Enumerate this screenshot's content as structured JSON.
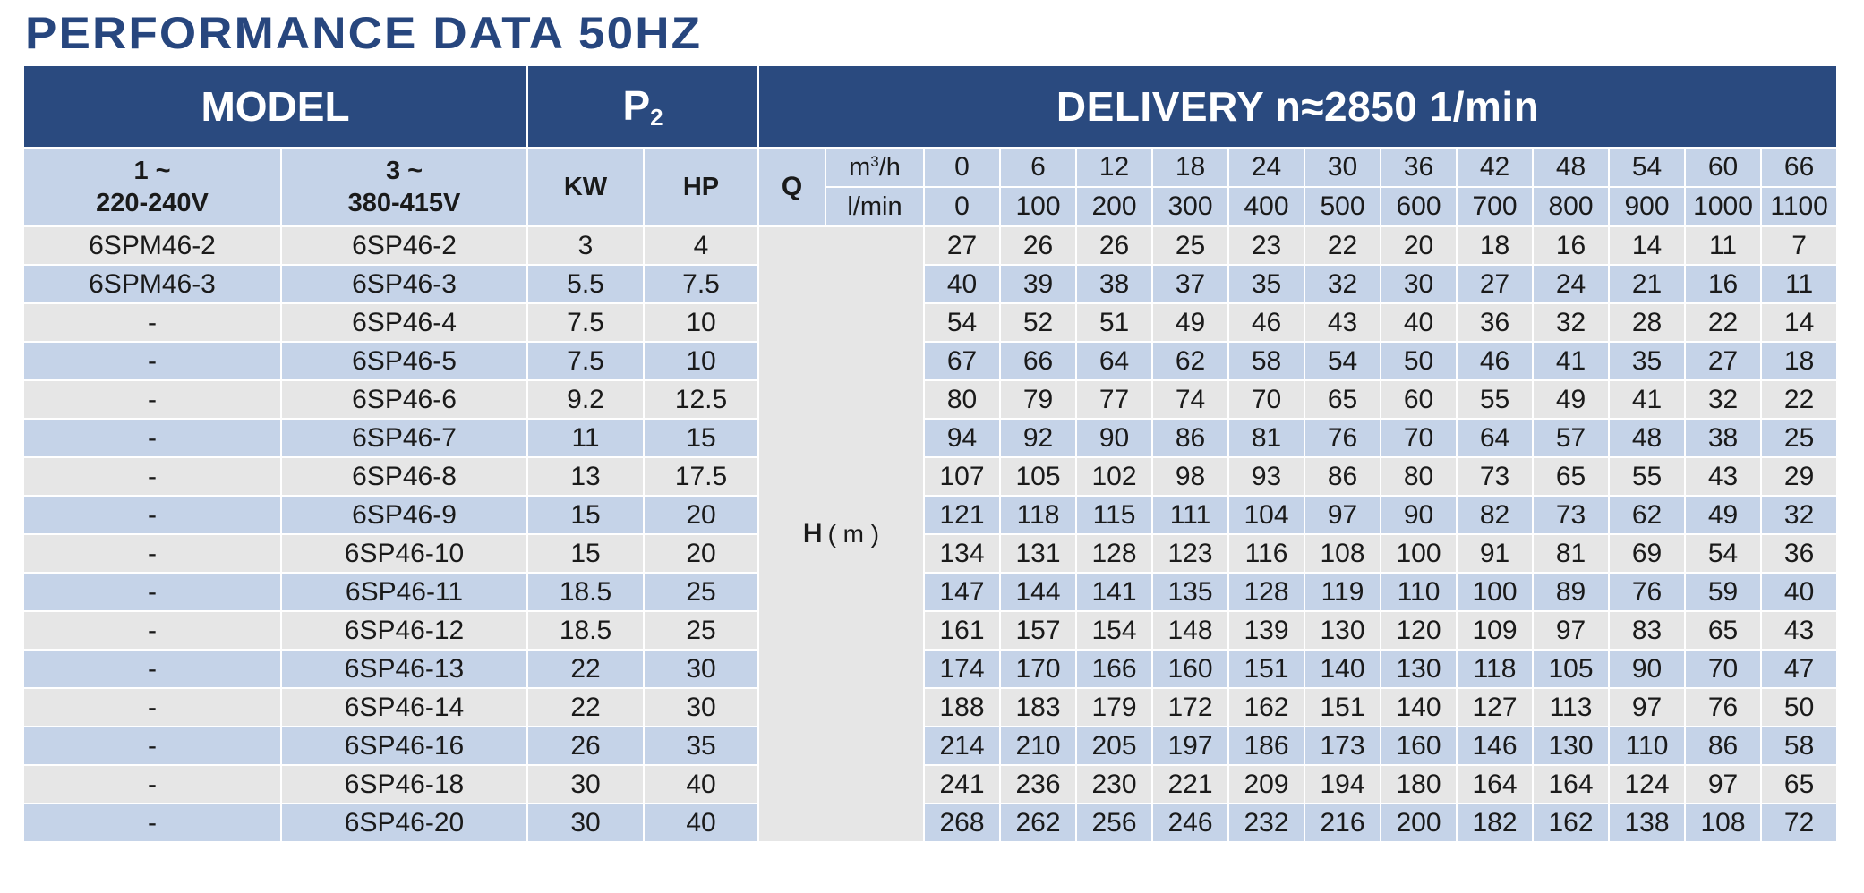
{
  "title": "PERFORMANCE DATA 50HZ",
  "header": {
    "model": "MODEL",
    "p2_main": "P",
    "p2_sub": "2",
    "delivery": "DELIVERY      n≈2850 1/min"
  },
  "subheader": {
    "single_phase_line1": "1 ~",
    "single_phase_line2": "220-240V",
    "three_phase_line1": "3 ~",
    "three_phase_line2": "380-415V",
    "kw": "KW",
    "hp": "HP",
    "q_label": "Q",
    "q_unit_m3h_base": "m",
    "q_unit_m3h_sup": "3",
    "q_unit_m3h_suffix": "/h",
    "q_unit_lmin": "l/min",
    "h_label": "H",
    "h_unit": "( m )"
  },
  "q_m3h": [
    "0",
    "6",
    "12",
    "18",
    "24",
    "30",
    "36",
    "42",
    "48",
    "54",
    "60",
    "66"
  ],
  "q_lmin": [
    "0",
    "100",
    "200",
    "300",
    "400",
    "500",
    "600",
    "700",
    "800",
    "900",
    "1000",
    "1100"
  ],
  "rows": [
    {
      "m1": "6SPM46-2",
      "m3": "6SP46-2",
      "kw": "3",
      "hp": "4",
      "h": [
        "27",
        "26",
        "26",
        "25",
        "23",
        "22",
        "20",
        "18",
        "16",
        "14",
        "11",
        "7"
      ]
    },
    {
      "m1": "6SPM46-3",
      "m3": "6SP46-3",
      "kw": "5.5",
      "hp": "7.5",
      "h": [
        "40",
        "39",
        "38",
        "37",
        "35",
        "32",
        "30",
        "27",
        "24",
        "21",
        "16",
        "11"
      ]
    },
    {
      "m1": "-",
      "m3": "6SP46-4",
      "kw": "7.5",
      "hp": "10",
      "h": [
        "54",
        "52",
        "51",
        "49",
        "46",
        "43",
        "40",
        "36",
        "32",
        "28",
        "22",
        "14"
      ]
    },
    {
      "m1": "-",
      "m3": "6SP46-5",
      "kw": "7.5",
      "hp": "10",
      "h": [
        "67",
        "66",
        "64",
        "62",
        "58",
        "54",
        "50",
        "46",
        "41",
        "35",
        "27",
        "18"
      ]
    },
    {
      "m1": "-",
      "m3": "6SP46-6",
      "kw": "9.2",
      "hp": "12.5",
      "h": [
        "80",
        "79",
        "77",
        "74",
        "70",
        "65",
        "60",
        "55",
        "49",
        "41",
        "32",
        "22"
      ]
    },
    {
      "m1": "-",
      "m3": "6SP46-7",
      "kw": "11",
      "hp": "15",
      "h": [
        "94",
        "92",
        "90",
        "86",
        "81",
        "76",
        "70",
        "64",
        "57",
        "48",
        "38",
        "25"
      ]
    },
    {
      "m1": "-",
      "m3": "6SP46-8",
      "kw": "13",
      "hp": "17.5",
      "h": [
        "107",
        "105",
        "102",
        "98",
        "93",
        "86",
        "80",
        "73",
        "65",
        "55",
        "43",
        "29"
      ]
    },
    {
      "m1": "-",
      "m3": "6SP46-9",
      "kw": "15",
      "hp": "20",
      "h": [
        "121",
        "118",
        "115",
        "111",
        "104",
        "97",
        "90",
        "82",
        "73",
        "62",
        "49",
        "32"
      ]
    },
    {
      "m1": "-",
      "m3": "6SP46-10",
      "kw": "15",
      "hp": "20",
      "h": [
        "134",
        "131",
        "128",
        "123",
        "116",
        "108",
        "100",
        "91",
        "81",
        "69",
        "54",
        "36"
      ]
    },
    {
      "m1": "-",
      "m3": "6SP46-11",
      "kw": "18.5",
      "hp": "25",
      "h": [
        "147",
        "144",
        "141",
        "135",
        "128",
        "119",
        "110",
        "100",
        "89",
        "76",
        "59",
        "40"
      ]
    },
    {
      "m1": "-",
      "m3": "6SP46-12",
      "kw": "18.5",
      "hp": "25",
      "h": [
        "161",
        "157",
        "154",
        "148",
        "139",
        "130",
        "120",
        "109",
        "97",
        "83",
        "65",
        "43"
      ]
    },
    {
      "m1": "-",
      "m3": "6SP46-13",
      "kw": "22",
      "hp": "30",
      "h": [
        "174",
        "170",
        "166",
        "160",
        "151",
        "140",
        "130",
        "118",
        "105",
        "90",
        "70",
        "47"
      ]
    },
    {
      "m1": "-",
      "m3": "6SP46-14",
      "kw": "22",
      "hp": "30",
      "h": [
        "188",
        "183",
        "179",
        "172",
        "162",
        "151",
        "140",
        "127",
        "113",
        "97",
        "76",
        "50"
      ]
    },
    {
      "m1": "-",
      "m3": "6SP46-16",
      "kw": "26",
      "hp": "35",
      "h": [
        "214",
        "210",
        "205",
        "197",
        "186",
        "173",
        "160",
        "146",
        "130",
        "110",
        "86",
        "58"
      ]
    },
    {
      "m1": "-",
      "m3": "6SP46-18",
      "kw": "30",
      "hp": "40",
      "h": [
        "241",
        "236",
        "230",
        "221",
        "209",
        "194",
        "180",
        "164",
        "164",
        "124",
        "97",
        "65"
      ]
    },
    {
      "m1": "-",
      "m3": "6SP46-20",
      "kw": "30",
      "hp": "40",
      "h": [
        "268",
        "262",
        "256",
        "246",
        "232",
        "216",
        "200",
        "182",
        "162",
        "138",
        "108",
        "72"
      ]
    }
  ]
}
